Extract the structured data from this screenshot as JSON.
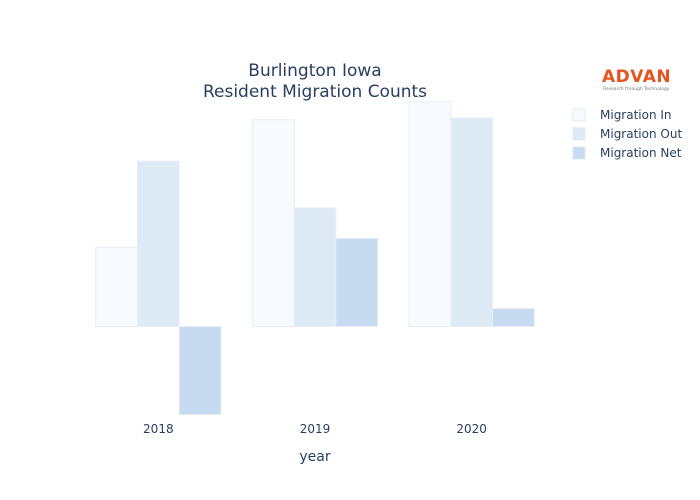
{
  "logo": {
    "brand": "ADVAN",
    "tagline": "Research through Technology"
  },
  "chart_data": {
    "type": "bar",
    "title": "Burlington Iowa",
    "subtitle": "Resident Migration Counts",
    "xlabel": "year",
    "ylabel": "",
    "categories": [
      "2018",
      "2019",
      "2020"
    ],
    "series": [
      {
        "name": "Migration In",
        "color": "#f7fbff",
        "values": [
          440,
          1150,
          1250
        ]
      },
      {
        "name": "Migration Out",
        "color": "#deebf7",
        "values": [
          920,
          660,
          1160
        ]
      },
      {
        "name": "Migration Net",
        "color": "#c6dbef",
        "values": [
          -490,
          490,
          100
        ]
      }
    ],
    "ylim": [
      -520,
      1260
    ],
    "grid": false,
    "legend_position": "right"
  }
}
